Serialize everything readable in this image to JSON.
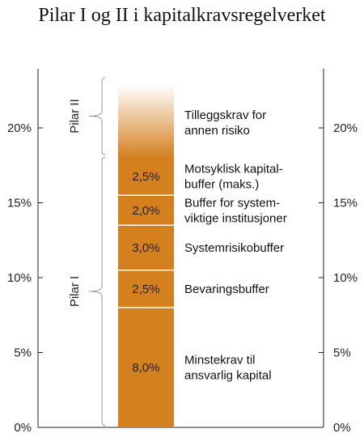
{
  "chart_data": {
    "type": "bar",
    "title": "Pilar I og II i kapitalkravsregelverket",
    "ylim": [
      0,
      0.25
    ],
    "y_ticks": [
      0,
      0.05,
      0.1,
      0.15,
      0.2
    ],
    "y_tick_labels": [
      "0%",
      "5%",
      "10%",
      "15%",
      "20%"
    ],
    "grid": false,
    "segments": [
      {
        "value": 8.0,
        "label": "8,0%",
        "description": [
          "Minstekrav til",
          "ansvarlig kapital"
        ],
        "color": "#d4801f"
      },
      {
        "value": 2.5,
        "label": "2,5%",
        "description": [
          "Bevaringsbuffer"
        ],
        "color": "#d4801f"
      },
      {
        "value": 3.0,
        "label": "3,0%",
        "description": [
          "Systemrisikobuffer"
        ],
        "color": "#d4801f"
      },
      {
        "value": 2.0,
        "label": "2,0%",
        "description": [
          "Buffer for system-",
          "viktige institusjoner"
        ],
        "color": "#d4801f"
      },
      {
        "value": 2.5,
        "label": "2,5%",
        "description": [
          "Motsyklisk kapital-",
          "buffer (maks.)"
        ],
        "color": "#d4801f"
      }
    ],
    "gradient_segment": {
      "description": [
        "Tilleggskrav for",
        "annen risiko"
      ],
      "color_bottom": "#d4801f",
      "color_top": "#ffffff"
    },
    "pillars": [
      {
        "name": "Pilar I",
        "from": 0,
        "to": 18.0
      },
      {
        "name": "Pilar II",
        "from": 18.0,
        "to": 23.0
      }
    ]
  }
}
